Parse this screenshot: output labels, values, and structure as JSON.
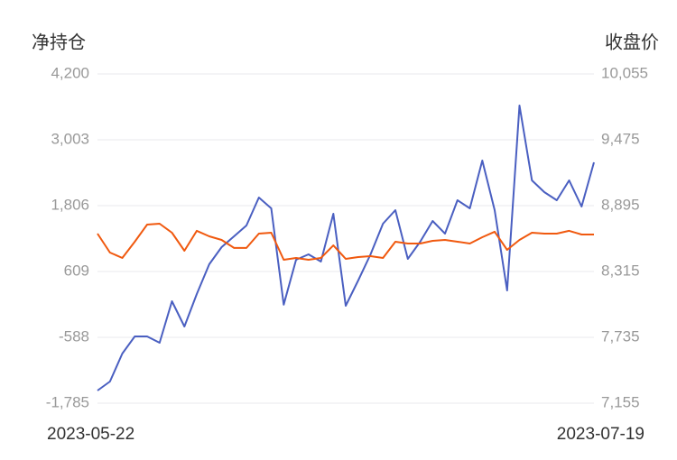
{
  "chart_data": {
    "type": "line",
    "y_title": "净持仓",
    "y2_title": "收盘价",
    "categories": [
      "2023-05-22",
      null,
      null,
      null,
      null,
      null,
      null,
      null,
      null,
      null,
      null,
      null,
      null,
      null,
      null,
      null,
      null,
      null,
      null,
      null,
      null,
      null,
      null,
      null,
      null,
      null,
      null,
      null,
      null,
      null,
      null,
      null,
      null,
      null,
      null,
      null,
      null,
      null,
      null,
      null,
      "2023-07-19"
    ],
    "series": [
      {
        "name": "净持仓",
        "color": "#4a5fc1",
        "values": [
          -1556,
          -1392,
          -883,
          -572,
          -572,
          -686,
          68,
          -391,
          199,
          740,
          1052,
          1249,
          1445,
          1954,
          1757,
          6,
          822,
          921,
          789,
          1658,
          -14,
          445,
          921,
          1478,
          1724,
          838,
          1150,
          1527,
          1298,
          1905,
          1757,
          2626,
          1724,
          265,
          3626,
          2265,
          2052,
          1905,
          2265,
          1790,
          2593
        ]
      },
      {
        "name": "收盘价",
        "color": "#f0590f",
        "axis": "y2",
        "values": [
          8649,
          8482,
          8434,
          8577,
          8728,
          8736,
          8657,
          8498,
          8673,
          8625,
          8593,
          8522,
          8522,
          8649,
          8657,
          8418,
          8434,
          8418,
          8434,
          8545,
          8426,
          8442,
          8450,
          8434,
          8577,
          8561,
          8561,
          8585,
          8593,
          8577,
          8561,
          8617,
          8665,
          8506,
          8593,
          8657,
          8649,
          8649,
          8673,
          8641,
          8641
        ]
      }
    ],
    "ylim": [
      -1785,
      4200
    ],
    "yticks": [
      {
        "value": -1785,
        "label": "-1,785"
      },
      -588,
      609,
      {
        "value": 1806,
        "label": "1,806"
      },
      {
        "value": 3003,
        "label": "3,003"
      },
      {
        "value": 4200,
        "label": "4,200"
      }
    ],
    "y2lim": [
      7155,
      10055
    ],
    "y2ticks": [
      {
        "value": 7155,
        "label": "7,155"
      },
      {
        "value": 7735,
        "label": "7,735"
      },
      {
        "value": 8315,
        "label": "8,315"
      },
      {
        "value": 8895,
        "label": "8,895"
      },
      {
        "value": 9475,
        "label": "9,475"
      },
      {
        "value": 10055,
        "label": "10,055"
      }
    ],
    "grid": true
  }
}
